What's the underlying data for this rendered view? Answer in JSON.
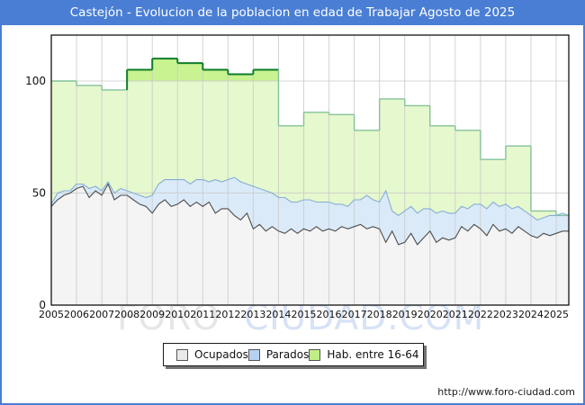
{
  "window": {
    "title": "Castejón - Evolucion de la poblacion en edad de Trabajar Agosto de 2025",
    "titlebar_color": "#4a7ed4",
    "border_color": "#4a7ed4"
  },
  "watermark": {
    "part1": "FORO",
    "part2": "CIUDAD.COM"
  },
  "footer": {
    "url": "http://www.foro-ciudad.com"
  },
  "chart_data": {
    "type": "area",
    "title": "Castejón - Evolucion de la poblacion en edad de Trabajar Agosto de 2025",
    "x_axis": {
      "tick_labels": [
        "2005",
        "2006",
        "2007",
        "2008",
        "2009",
        "2010",
        "2011",
        "2012",
        "2013",
        "2014",
        "2015",
        "2016",
        "2017",
        "2018",
        "2019",
        "2020",
        "2021",
        "2022",
        "2023",
        "2024",
        "2025"
      ],
      "range": [
        2005,
        2025.5
      ],
      "grid": true
    },
    "y_axis": {
      "ticks": [
        0,
        50,
        100
      ],
      "range": [
        0,
        120
      ],
      "grid": true
    },
    "legend": {
      "position": "bottom",
      "entries": [
        {
          "label": "Ocupados",
          "swatch": "#e9e9e9"
        },
        {
          "label": "Parados",
          "swatch": "#b6d2f0"
        },
        {
          "label": "Hab. entre 16-64",
          "swatch": "#bfee86"
        }
      ]
    },
    "colors": {
      "gridline": "#c9c9c9",
      "plot_border": "#000000"
    },
    "series": [
      {
        "name": "Ocupados",
        "kind": "line-area",
        "x_start": 2005,
        "x_step": 0.25,
        "fill": "#f4f4f4",
        "stroke": "#4d4d4d",
        "values": [
          44,
          47,
          49,
          50,
          52,
          53,
          48,
          51,
          49,
          54,
          47,
          49,
          49,
          47,
          45,
          44,
          41,
          45,
          47,
          44,
          45,
          47,
          44,
          46,
          44,
          46,
          41,
          43,
          43,
          40,
          38,
          41,
          34,
          36,
          33,
          35,
          33,
          32,
          34,
          32,
          34,
          33,
          35,
          33,
          34,
          33,
          35,
          34,
          35,
          36,
          34,
          35,
          34,
          28,
          33,
          27,
          28,
          32,
          27,
          30,
          33,
          28,
          30,
          29,
          30,
          35,
          33,
          36,
          34,
          31,
          36,
          33,
          34,
          32,
          35,
          33,
          31,
          30,
          32,
          31,
          32,
          33,
          33
        ]
      },
      {
        "name": "Parados",
        "kind": "stacked-line-area",
        "x_start": 2005,
        "x_step": 0.25,
        "fill": "#daeaf8",
        "stroke": "#85aed6",
        "values": [
          1,
          3,
          2,
          1,
          2,
          1,
          4,
          2,
          2,
          1,
          3,
          3,
          2,
          3,
          4,
          4,
          8,
          9,
          9,
          12,
          11,
          9,
          10,
          10,
          12,
          9,
          15,
          12,
          13,
          17,
          17,
          13,
          19,
          16,
          18,
          15,
          15,
          16,
          12,
          14,
          13,
          14,
          11,
          13,
          12,
          12,
          10,
          10,
          12,
          11,
          15,
          12,
          12,
          23,
          9,
          13,
          14,
          12,
          14,
          13,
          10,
          13,
          12,
          12,
          11,
          9,
          10,
          9,
          11,
          12,
          10,
          11,
          11,
          11,
          9,
          9,
          9,
          8,
          7,
          9,
          8,
          8,
          7
        ]
      },
      {
        "name": "Hab. entre 16-64",
        "kind": "year-step-area",
        "years": [
          2005,
          2006,
          2007,
          2008,
          2009,
          2010,
          2011,
          2012,
          2013,
          2014,
          2015,
          2016,
          2017,
          2018,
          2019,
          2020,
          2021,
          2022,
          2023,
          2024,
          2025
        ],
        "values": [
          100,
          98,
          96,
          105,
          110,
          108,
          105,
          103,
          105,
          80,
          86,
          85,
          78,
          92,
          89,
          80,
          78,
          65,
          71,
          42,
          40
        ],
        "threshold": 100,
        "fill": "#e6f8cd",
        "fill_above_threshold": "#c9f391",
        "stroke": "#84c29a",
        "stroke_above_threshold": "#0e7e28"
      }
    ]
  }
}
